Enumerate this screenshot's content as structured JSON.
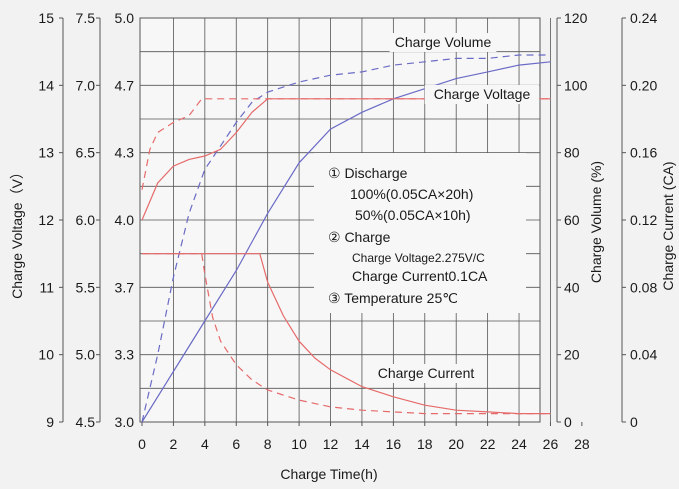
{
  "chart_data": {
    "type": "line",
    "xlabel": "Charge Time(h)",
    "x_ticks": [
      "0",
      "2",
      "4",
      "6",
      "8",
      "10",
      "12",
      "14",
      "16",
      "18",
      "20",
      "22",
      "24",
      "26",
      "28"
    ],
    "xlim": [
      0,
      28
    ],
    "left_axes": [
      {
        "label": "Charge Voltage（V）",
        "ticks": [
          "9",
          "10",
          "11",
          "12",
          "13",
          "14",
          "15"
        ]
      },
      {
        "label": "",
        "ticks": [
          "4.5",
          "5.0",
          "5.5",
          "6.0",
          "6.5",
          "7.0",
          "7.5"
        ]
      },
      {
        "label": "",
        "ticks": [
          "3.0",
          "3.3",
          "3.7",
          "4.0",
          "4.3",
          "4.7",
          "5.0"
        ]
      }
    ],
    "right_axes": [
      {
        "label": "Charge Volume (%)",
        "ticks": [
          "0",
          "20",
          "40",
          "60",
          "80",
          "100",
          "120"
        ],
        "ylim": [
          0,
          120
        ]
      },
      {
        "label": "Charge Current (CA)",
        "ticks": [
          "0",
          "0.04",
          "0.08",
          "0.12",
          "0.16",
          "0.20",
          "0.24"
        ],
        "ylim": [
          0,
          0.24
        ]
      }
    ],
    "series": [
      {
        "name": "Charge Volume",
        "color": "#6b6bc6",
        "dash": false,
        "axis": "volume",
        "x": [
          0,
          2,
          4,
          6,
          8,
          10,
          12,
          14,
          16,
          18,
          20,
          22,
          24,
          26
        ],
        "y": [
          0,
          15,
          30,
          45,
          62,
          77,
          87,
          92,
          96,
          99,
          102,
          104,
          106,
          107
        ]
      },
      {
        "name": "",
        "color": "#6b6bc6",
        "dash": true,
        "axis": "volume",
        "x": [
          0,
          1,
          2,
          3,
          4,
          5,
          6,
          7,
          8,
          10,
          12,
          14,
          16,
          18,
          20,
          22,
          24,
          26
        ],
        "y": [
          0,
          20,
          43,
          62,
          75,
          82,
          89,
          95,
          98,
          101,
          103,
          104,
          106,
          107,
          108,
          108,
          109,
          109
        ]
      },
      {
        "name": "Charge Voltage",
        "color": "#e66a6a",
        "dash": false,
        "axis": "voltage",
        "x": [
          0,
          1,
          2,
          3,
          4,
          5,
          6,
          7,
          8,
          10,
          12,
          14,
          16,
          18,
          20,
          22,
          24,
          26
        ],
        "y": [
          12.0,
          12.55,
          12.8,
          12.9,
          12.95,
          13.05,
          13.3,
          13.6,
          13.8,
          13.8,
          13.8,
          13.8,
          13.8,
          13.8,
          13.8,
          13.8,
          13.8,
          13.8
        ]
      },
      {
        "name": "",
        "color": "#e66a6a",
        "dash": true,
        "axis": "voltage",
        "x": [
          0,
          0.5,
          1,
          2,
          3,
          3.8,
          4,
          5,
          6,
          8,
          10,
          12,
          14,
          16,
          18,
          20,
          22,
          24,
          26
        ],
        "y": [
          12.45,
          13.05,
          13.3,
          13.45,
          13.55,
          13.8,
          13.8,
          13.8,
          13.8,
          13.8,
          13.8,
          13.8,
          13.8,
          13.8,
          13.8,
          13.8,
          13.8,
          13.8,
          13.8
        ]
      },
      {
        "name": "Charge Current",
        "color": "#e66a6a",
        "dash": false,
        "axis": "current",
        "x": [
          0,
          7.5,
          8,
          9,
          10,
          11,
          12,
          14,
          16,
          18,
          20,
          22,
          24,
          26
        ],
        "y": [
          0.1,
          0.1,
          0.083,
          0.063,
          0.048,
          0.038,
          0.031,
          0.021,
          0.015,
          0.01,
          0.007,
          0.006,
          0.005,
          0.005
        ]
      },
      {
        "name": "",
        "color": "#e66a6a",
        "dash": true,
        "axis": "current",
        "x": [
          0,
          3.8,
          4,
          4.5,
          5,
          6,
          7,
          8,
          10,
          12,
          14,
          16,
          18,
          20,
          22,
          24,
          26
        ],
        "y": [
          0.1,
          0.1,
          0.088,
          0.062,
          0.048,
          0.034,
          0.025,
          0.019,
          0.013,
          0.009,
          0.007,
          0.006,
          0.005,
          0.005,
          0.005,
          0.005,
          0.005
        ]
      }
    ],
    "annotation": {
      "lines": [
        "①  Discharge",
        "100%(0.05CA×20h)",
        "50%(0.05CA×10h)",
        "②  Charge",
        "Charge Voltage2.275V/C",
        "Charge Current0.1CA",
        "③  Temperature 25℃"
      ]
    },
    "grid": true
  }
}
